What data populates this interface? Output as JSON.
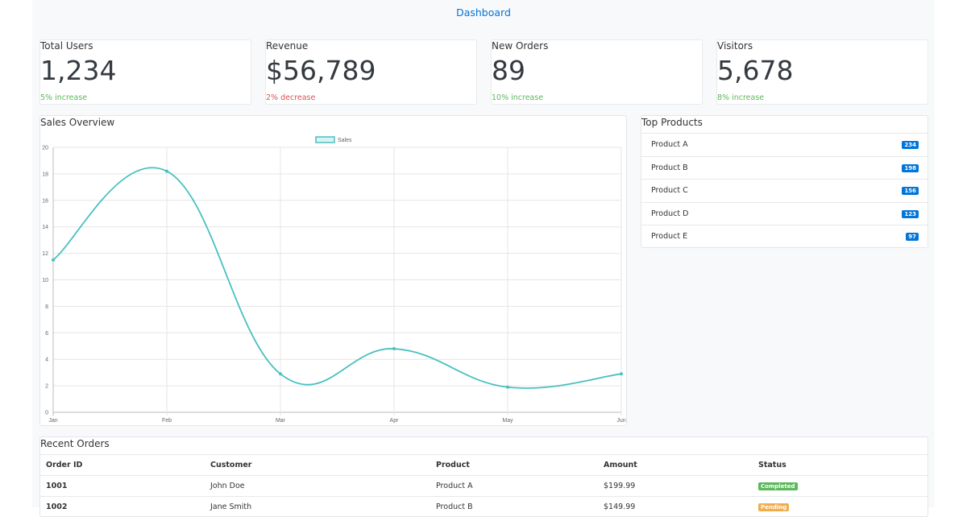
{
  "header": {
    "title": "Dashboard"
  },
  "stats": [
    {
      "title": "Total Users",
      "value": "1,234",
      "change": "5% increase",
      "color": "#5cb85c"
    },
    {
      "title": "Revenue",
      "value": "$56,789",
      "change": "2% decrease",
      "color": "#d9534f"
    },
    {
      "title": "New Orders",
      "value": "89",
      "change": "10% increase",
      "color": "#5cb85c"
    },
    {
      "title": "Visitors",
      "value": "5,678",
      "change": "8% increase",
      "color": "#5cb85c"
    }
  ],
  "chart_data": {
    "type": "line",
    "title": "Sales Overview",
    "categories": [
      "Jan",
      "Feb",
      "Mar",
      "Apr",
      "May",
      "Jun"
    ],
    "series": [
      {
        "name": "Sales",
        "color": "#4bc0c0",
        "values": [
          11.5,
          18.2,
          2.9,
          4.8,
          1.9,
          2.9
        ]
      }
    ],
    "ylim": [
      0,
      20
    ],
    "yticks": [
      0,
      2,
      4,
      6,
      8,
      10,
      12,
      14,
      16,
      18,
      20
    ],
    "grid": true,
    "legend": "top"
  },
  "top_products": {
    "title": "Top Products",
    "badge_color": "#0275d8",
    "items": [
      {
        "name": "Product A",
        "count": "234"
      },
      {
        "name": "Product B",
        "count": "198"
      },
      {
        "name": "Product C",
        "count": "156"
      },
      {
        "name": "Product D",
        "count": "123"
      },
      {
        "name": "Product E",
        "count": "97"
      }
    ]
  },
  "recent_orders": {
    "title": "Recent Orders",
    "columns": [
      "Order ID",
      "Customer",
      "Product",
      "Amount",
      "Status"
    ],
    "rows": [
      {
        "cells": [
          "1001",
          "John Doe",
          "Product A",
          "$199.99",
          "Completed"
        ],
        "status_color": "#5cb85c"
      },
      {
        "cells": [
          "1002",
          "Jane Smith",
          "Product B",
          "$149.99",
          "Pending"
        ],
        "status_color": "#f0ad4e"
      }
    ]
  }
}
